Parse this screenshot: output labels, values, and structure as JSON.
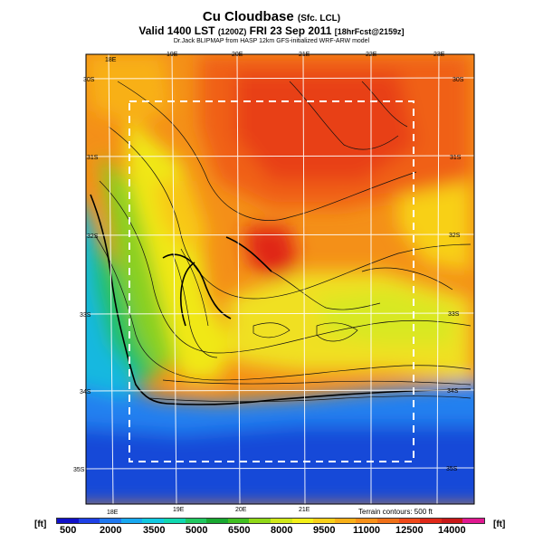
{
  "header": {
    "title": "Cu Cloudbase",
    "title_suffix": "(Sfc. LCL)",
    "subtitle_main": "Valid 1400 LST",
    "subtitle_z": "(1200Z)",
    "subtitle_date": "FRI 23 Sep 2011",
    "subtitle_fcst": "[18hrFcst@2159z]",
    "credit": "Dr.Jack BLIPMAP from HASP 12km GFS-initialized WRF-ARW model"
  },
  "map": {
    "top_lon_labels": [
      "18E",
      "19E",
      "20E",
      "21E",
      "22E",
      "23E"
    ],
    "bottom_lon_labels": [
      "18E",
      "19E",
      "20E",
      "21E"
    ],
    "left_lat_labels": [
      "30S",
      "31S",
      "32S",
      "33S",
      "34S",
      "35S"
    ],
    "right_lat_labels": [
      "30S",
      "31S",
      "32S",
      "33S",
      "34S",
      "35S"
    ],
    "terrain_note": "Terrain contours: 500 ft"
  },
  "legend": {
    "unit": "[ft]",
    "ticks": [
      "500",
      "2000",
      "3500",
      "5000",
      "6500",
      "8000",
      "9500",
      "11000",
      "12500",
      "14000"
    ],
    "colors": [
      "#1010c8",
      "#1e40e6",
      "#1f78f0",
      "#18a8f0",
      "#10c8e0",
      "#10d8b0",
      "#20c860",
      "#18a830",
      "#40c020",
      "#90d818",
      "#d0e818",
      "#f4f018",
      "#f8d018",
      "#f8b018",
      "#f89018",
      "#f07018",
      "#f04818",
      "#e02818",
      "#c81818",
      "#e01890"
    ]
  }
}
